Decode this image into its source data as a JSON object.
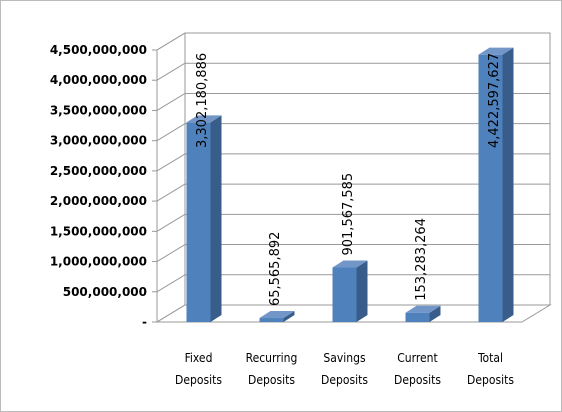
{
  "chart_data": {
    "type": "bar3d",
    "categories": [
      "Fixed Deposits",
      "Recurring Deposits",
      "Savings Deposits",
      "Current Deposits",
      "Total Deposits"
    ],
    "values": [
      3302180886,
      65565892,
      901567585,
      153283264,
      4422597627
    ],
    "value_labels": [
      "3,302,180,886",
      "65,565,892",
      "901,567,585",
      "153,283,264",
      "4,422,597,627"
    ],
    "color": "#4f81bd",
    "ylim": [
      0,
      4500000000
    ],
    "yticks": [
      {
        "value": 0,
        "label": "-"
      },
      {
        "value": 500000000,
        "label": "500,000,000"
      },
      {
        "value": 1000000000,
        "label": "1,000,000,000"
      },
      {
        "value": 1500000000,
        "label": "1,500,000,000"
      },
      {
        "value": 2000000000,
        "label": "2,000,000,000"
      },
      {
        "value": 2500000000,
        "label": "2,500,000,000"
      },
      {
        "value": 3000000000,
        "label": "3,000,000,000"
      },
      {
        "value": 3500000000,
        "label": "3,500,000,000"
      },
      {
        "value": 4000000000,
        "label": "4,000,000,000"
      },
      {
        "value": 4500000000,
        "label": "4,500,000,000"
      }
    ],
    "grid": true
  }
}
